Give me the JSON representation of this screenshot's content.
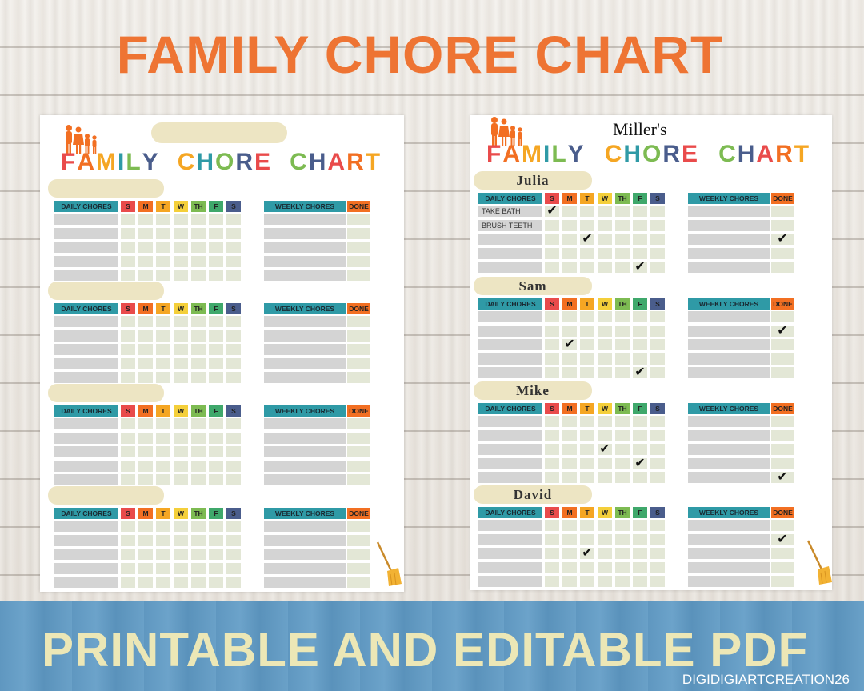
{
  "banner": {
    "title": "FAMILY CHORE CHART",
    "bottom_text": "PRINTABLE AND EDITABLE PDF",
    "credit": "DIGIDIGIARTCREATION26"
  },
  "colors": {
    "title_orange": "#ee7433",
    "teal": "#2f9aa6",
    "done_orange": "#f26f22",
    "cell_green": "#e3e7d6",
    "cell_grey": "#d4d4d4",
    "pill": "#ede5c3"
  },
  "chart": {
    "word1": [
      "F",
      "A",
      "M",
      "I",
      "L",
      "Y"
    ],
    "word2": [
      "C",
      "H",
      "O",
      "R",
      "E"
    ],
    "word3": [
      "C",
      "H",
      "A",
      "R",
      "T"
    ],
    "daily_label": "DAILY CHORES",
    "weekly_label": "WEEKLY CHORES",
    "done_label": "DONE",
    "days": [
      "S",
      "M",
      "T",
      "W",
      "TH",
      "F",
      "S"
    ],
    "day_colors": [
      "#e94b4b",
      "#f26f22",
      "#f5a623",
      "#f4cf3a",
      "#7dbb52",
      "#3fa86b",
      "#4a5d8c"
    ]
  },
  "blank_page": {
    "family_name": "",
    "members": [
      "",
      "",
      "",
      ""
    ]
  },
  "filled_page": {
    "family_name": "Miller's",
    "members": [
      {
        "name": "Julia",
        "chores": [
          "TAKE BATH",
          "BRUSH TEETH",
          "",
          "",
          ""
        ],
        "checks": [
          [
            0,
            0
          ],
          [
            2,
            2
          ],
          [
            4,
            5
          ]
        ],
        "done_checks": [
          2
        ]
      },
      {
        "name": "Sam",
        "chores": [
          "",
          "",
          "",
          "",
          ""
        ],
        "checks": [
          [
            2,
            1
          ],
          [
            4,
            5
          ]
        ],
        "done_checks": [
          1
        ]
      },
      {
        "name": "Mike",
        "chores": [
          "",
          "",
          "",
          "",
          ""
        ],
        "checks": [
          [
            2,
            3
          ],
          [
            3,
            5
          ]
        ],
        "done_checks": [
          4
        ]
      },
      {
        "name": "David",
        "chores": [
          "",
          "",
          "",
          "",
          ""
        ],
        "checks": [
          [
            2,
            2
          ]
        ],
        "done_checks": [
          1
        ]
      }
    ]
  },
  "icons": {
    "logo": "family-silhouette-icon",
    "broom": "broom-icon",
    "check": "check-icon"
  }
}
